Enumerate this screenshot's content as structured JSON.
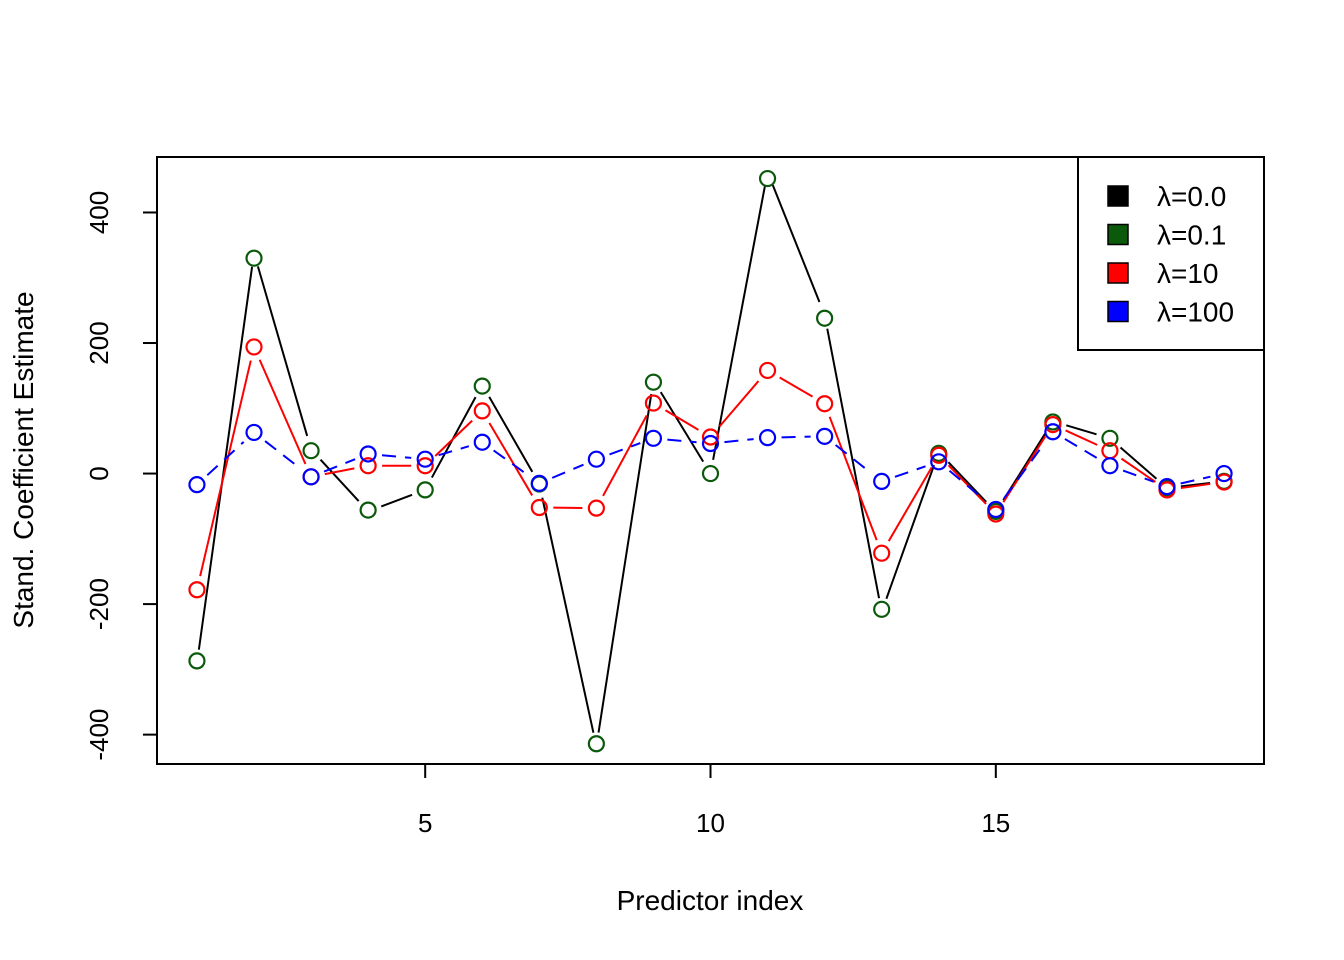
{
  "chart_data": {
    "type": "line",
    "title": "",
    "xlabel": "Predictor index",
    "ylabel": "Stand. Coefficient Estimate",
    "xlim": [
      0.3,
      19.7
    ],
    "ylim": [
      -445,
      485
    ],
    "x_ticks": [
      5,
      10,
      15
    ],
    "y_ticks": [
      -400,
      -200,
      0,
      200,
      400
    ],
    "x": [
      1,
      2,
      3,
      4,
      5,
      6,
      7,
      8,
      9,
      10,
      11,
      12,
      13,
      14,
      15,
      16,
      17,
      18,
      19
    ],
    "legend_position": "top-right",
    "series": [
      {
        "name": "λ=0.0",
        "color": "#000000",
        "dash": "solid",
        "point_color": "#0b5a0b",
        "show_points": false,
        "values": [
          -291,
          338,
          37,
          -58,
          -25,
          136,
          -16,
          -418,
          143,
          0,
          462,
          243,
          -212,
          33,
          -59,
          80,
          54,
          -22,
          -12
        ]
      },
      {
        "name": "λ=0.1",
        "color": "#0b5a0b",
        "dash": "none",
        "point_color": "#0b5a0b",
        "show_points": true,
        "values": [
          -287,
          330,
          35,
          -56,
          -25,
          134,
          -16,
          -414,
          140,
          0,
          452,
          238,
          -208,
          31,
          -58,
          79,
          54,
          -22,
          -12
        ]
      },
      {
        "name": "λ=10",
        "color": "#ff0000",
        "dash": "solid",
        "point_color": "#ff0000",
        "show_points": true,
        "values": [
          -178,
          194,
          -5,
          12,
          12,
          96,
          -52,
          -53,
          108,
          56,
          158,
          107,
          -122,
          28,
          -62,
          75,
          35,
          -25,
          -13
        ]
      },
      {
        "name": "λ=100",
        "color": "#0000ff",
        "dash": "dashed",
        "point_color": "#0000ff",
        "show_points": true,
        "values": [
          -17,
          63,
          -5,
          30,
          22,
          48,
          -15,
          22,
          54,
          46,
          55,
          57,
          -12,
          18,
          -55,
          64,
          12,
          -20,
          0
        ]
      }
    ]
  }
}
